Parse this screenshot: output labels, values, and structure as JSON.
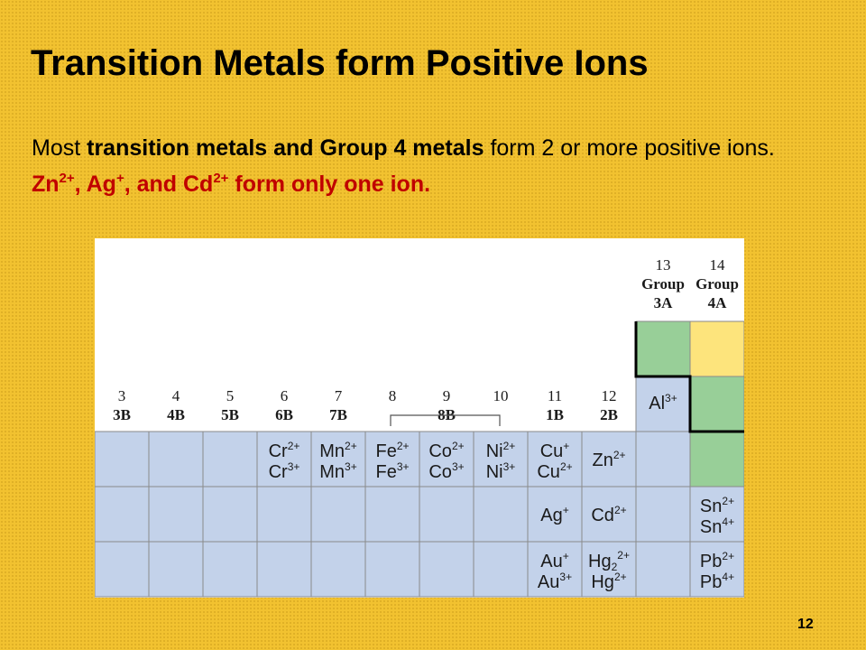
{
  "slide": {
    "title": "Transition Metals form Positive Ions",
    "subtitle": {
      "pre": "Most ",
      "bold": "transition metals and Group 4 metals",
      "post": " form 2 or more positive ions.  ",
      "red_parts": [
        "Zn",
        "2+",
        ", Ag",
        "+",
        ", and Cd",
        "2+",
        " form only one ion."
      ]
    },
    "page_number": "12"
  },
  "table": {
    "colors": {
      "blue": "#c3d2ea",
      "green": "#98cf98",
      "yellow": "#fde47c",
      "white": "#ffffff",
      "grid": "#8a8a8a"
    },
    "groups_right": [
      {
        "num": "13",
        "w1": "Group",
        "w2": "3A"
      },
      {
        "num": "14",
        "w1": "Group",
        "w2": "4A"
      }
    ],
    "groups": [
      {
        "num": "3",
        "label": "3B"
      },
      {
        "num": "4",
        "label": "4B"
      },
      {
        "num": "5",
        "label": "5B"
      },
      {
        "num": "6",
        "label": "6B"
      },
      {
        "num": "7",
        "label": "7B"
      },
      {
        "num": "8",
        "label": ""
      },
      {
        "num": "9",
        "label": "8B"
      },
      {
        "num": "10",
        "label": ""
      },
      {
        "num": "11",
        "label": "1B"
      },
      {
        "num": "12",
        "label": "2B"
      }
    ],
    "ions": {
      "al": [
        {
          "el": "Al",
          "ch": "3+"
        }
      ],
      "row4": [
        [],
        [],
        [],
        [
          {
            "el": "Cr",
            "ch": "2+"
          },
          {
            "el": "Cr",
            "ch": "3+"
          }
        ],
        [
          {
            "el": "Mn",
            "ch": "2+"
          },
          {
            "el": "Mn",
            "ch": "3+"
          }
        ],
        [
          {
            "el": "Fe",
            "ch": "2+"
          },
          {
            "el": "Fe",
            "ch": "3+"
          }
        ],
        [
          {
            "el": "Co",
            "ch": "2+"
          },
          {
            "el": "Co",
            "ch": "3+"
          }
        ],
        [
          {
            "el": "Ni",
            "ch": "2+"
          },
          {
            "el": "Ni",
            "ch": "3+"
          }
        ],
        [
          {
            "el": "Cu",
            "ch": "+"
          },
          {
            "el": "Cu",
            "ch": "2+"
          }
        ],
        [
          {
            "el": "Zn",
            "ch": "2+"
          }
        ],
        [],
        []
      ],
      "row5": [
        [],
        [],
        [],
        [],
        [],
        [],
        [],
        [],
        [
          {
            "el": "Ag",
            "ch": "+"
          }
        ],
        [
          {
            "el": "Cd",
            "ch": "2+"
          }
        ],
        [],
        [
          {
            "el": "Sn",
            "ch": "2+"
          },
          {
            "el": "Sn",
            "ch": "4+"
          }
        ]
      ],
      "row6": [
        [],
        [],
        [],
        [],
        [],
        [],
        [],
        [],
        [
          {
            "el": "Au",
            "ch": "+"
          },
          {
            "el": "Au",
            "ch": "3+"
          }
        ],
        [
          {
            "el": "Hg",
            "sub": "2",
            "ch": "2+"
          },
          {
            "el": "Hg",
            "ch": "2+"
          }
        ],
        [],
        [
          {
            "el": "Pb",
            "ch": "2+"
          },
          {
            "el": "Pb",
            "ch": "4+"
          }
        ]
      ]
    }
  }
}
